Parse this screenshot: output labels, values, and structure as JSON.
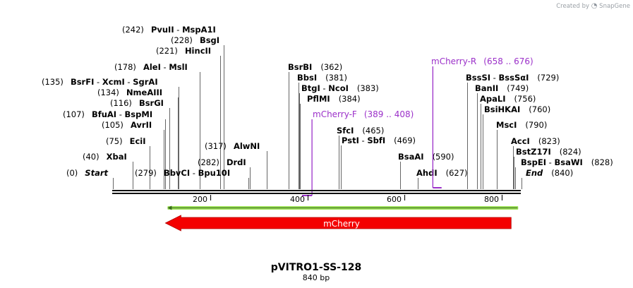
{
  "credit": {
    "prefix": "Created by",
    "brand": "SnapGene"
  },
  "plasmid": {
    "name": "pVITRO1-SS-128",
    "length_label": "840 bp"
  },
  "sites": [
    {
      "id": "pvuII",
      "num": "(242)",
      "name": "PvuII",
      "pos": 242
    },
    {
      "id": "mspa1i",
      "name": "MspA1I",
      "pos": 242
    },
    {
      "id": "bsgi",
      "num": "(228)",
      "name": "BsgI",
      "pos": 228
    },
    {
      "id": "hincii",
      "num": "(221)",
      "name": "HincII",
      "pos": 221
    },
    {
      "id": "alei",
      "num": "(178)",
      "name": "AleI",
      "pos": 178
    },
    {
      "id": "msli",
      "name": "MslI",
      "pos": 178
    },
    {
      "id": "bsrfi",
      "num": "(135)",
      "name": "BsrFI",
      "pos": 135
    },
    {
      "id": "xcmi",
      "name": "XcmI",
      "pos": 135
    },
    {
      "id": "sgrai",
      "name": "SgrAI",
      "pos": 135
    },
    {
      "id": "nmeaiii",
      "num": "(134)",
      "name": "NmeAIII",
      "pos": 134
    },
    {
      "id": "bsrgi",
      "num": "(116)",
      "name": "BsrGI",
      "pos": 116
    },
    {
      "id": "bfuai",
      "num": "(107)",
      "name": "BfuAI",
      "pos": 107
    },
    {
      "id": "bspmi",
      "name": "BspMI",
      "pos": 107
    },
    {
      "id": "avrii",
      "num": "(105)",
      "name": "AvrII",
      "pos": 105
    },
    {
      "id": "ecii",
      "num": "(75)",
      "name": "EciI",
      "pos": 75
    },
    {
      "id": "xbai",
      "num": "(40)",
      "name": "XbaI",
      "pos": 40
    },
    {
      "id": "start",
      "num": "(0)",
      "name": "Start",
      "pos": 0
    },
    {
      "id": "bbvci",
      "num": "(279)",
      "name": "BbvCI",
      "pos": 279
    },
    {
      "id": "bpu10i",
      "name": "Bpu10I",
      "pos": 279
    },
    {
      "id": "drdi",
      "num": "(282)",
      "name": "DrdI",
      "pos": 282
    },
    {
      "id": "alwni",
      "num": "(317)",
      "name": "AlwNI",
      "pos": 317
    },
    {
      "id": "bsrbi",
      "name": "BsrBI",
      "num": "(362)",
      "pos": 362
    },
    {
      "id": "bbsi",
      "name": "BbsI",
      "num": "(381)",
      "pos": 381
    },
    {
      "id": "btgi",
      "name": "BtgI",
      "pos": 383
    },
    {
      "id": "ncoi",
      "name": "NcoI",
      "num": "(383)",
      "pos": 383
    },
    {
      "id": "pflmi",
      "name": "PflMI",
      "num": "(384)",
      "pos": 384
    },
    {
      "id": "sfci",
      "name": "SfcI",
      "num": "(465)",
      "pos": 465
    },
    {
      "id": "psti",
      "name": "PstI",
      "pos": 469
    },
    {
      "id": "sbfi",
      "name": "SbfI",
      "num": "(469)",
      "pos": 469
    },
    {
      "id": "bsaai",
      "name": "BsaAI",
      "num": "(590)",
      "pos": 590
    },
    {
      "id": "ahdi",
      "name": "AhdI",
      "num": "(627)",
      "pos": 627
    },
    {
      "id": "bsssi",
      "name": "BssSI",
      "pos": 729
    },
    {
      "id": "bsssai",
      "name": "BssSαI",
      "num": "(729)",
      "pos": 729
    },
    {
      "id": "banii",
      "name": "BanII",
      "num": "(749)",
      "pos": 749
    },
    {
      "id": "apali",
      "name": "ApaLI",
      "num": "(756)",
      "pos": 756
    },
    {
      "id": "bsihkai",
      "name": "BsiHKAI",
      "num": "(760)",
      "pos": 760
    },
    {
      "id": "msci",
      "name": "MscI",
      "num": "(790)",
      "pos": 790
    },
    {
      "id": "acci",
      "name": "AccI",
      "num": "(823)",
      "pos": 823
    },
    {
      "id": "bstz17i",
      "name": "BstZ17I",
      "num": "(824)",
      "pos": 824
    },
    {
      "id": "bspei",
      "name": "BspEI",
      "pos": 828
    },
    {
      "id": "bsawi",
      "name": "BsaWI",
      "num": "(828)",
      "pos": 828
    },
    {
      "id": "end",
      "name": "End",
      "num": "(840)",
      "pos": 840
    }
  ],
  "primers": [
    {
      "id": "mcherry-f",
      "name": "mCherry-F",
      "range": "(389 .. 408)",
      "start": 389,
      "end": 408
    },
    {
      "id": "mcherry-r",
      "name": "mCherry-R",
      "range": "(658 .. 676)",
      "start": 658,
      "end": 676
    }
  ],
  "ticks": [
    {
      "label": "200",
      "pos": 200
    },
    {
      "label": "400",
      "pos": 400
    },
    {
      "label": "600",
      "pos": 600
    },
    {
      "label": "800",
      "pos": 800
    }
  ],
  "features": [
    {
      "id": "mcherry-orf",
      "pos_start": 108,
      "pos_end": 819,
      "direction": "reverse",
      "color": "#9ee05a"
    },
    {
      "id": "mcherry",
      "name": "mCherry",
      "pos_start": 108,
      "pos_end": 819,
      "direction": "reverse",
      "color": "#f40000"
    }
  ],
  "colors": {
    "primer": "#9b30c9",
    "feature": "#f40000",
    "orf": "#9ee05a"
  }
}
